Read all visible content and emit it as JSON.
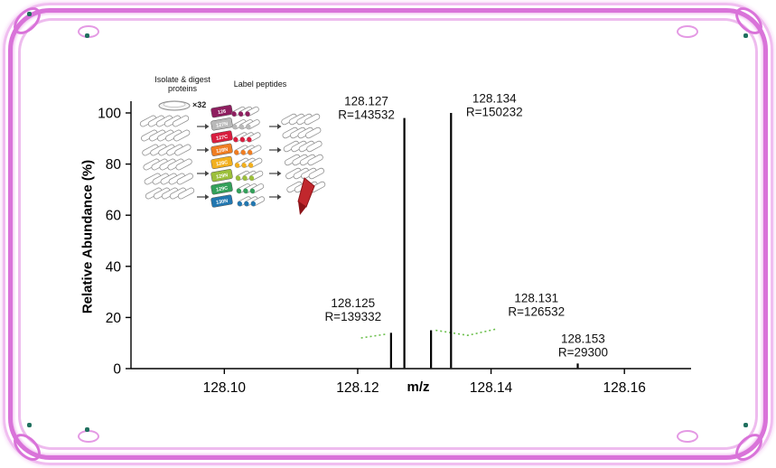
{
  "figure": {
    "background": "#ffffff"
  },
  "frame": {
    "main_color": "#d973d9",
    "light_color": "#f0bdf0",
    "speck_color": "#20705f"
  },
  "chart_data": {
    "type": "bar",
    "title": "",
    "xlabel": "m/z",
    "ylabel": "Relative Abundance (%)",
    "grid": false,
    "legend": null,
    "x_axis": {
      "min": 128.086,
      "max": 128.17,
      "ticks": [
        {
          "value": 128.1,
          "label": "128.10"
        },
        {
          "value": 128.12,
          "label": "128.12"
        },
        {
          "value": 128.14,
          "label": "128.14"
        },
        {
          "value": 128.16,
          "label": "128.16"
        }
      ]
    },
    "y_axis": {
      "min": 0,
      "max": 100,
      "ticks": [
        0,
        20,
        40,
        60,
        80,
        100
      ]
    },
    "peaks": [
      {
        "mz": 128.125,
        "abundance": 14
      },
      {
        "mz": 128.127,
        "abundance": 98
      },
      {
        "mz": 128.131,
        "abundance": 15
      },
      {
        "mz": 128.134,
        "abundance": 100
      },
      {
        "mz": 128.153,
        "abundance": 2
      }
    ],
    "annotations": [
      {
        "line1": "128.127",
        "line2": "R=143532",
        "mz": 128.1213,
        "ab": 103
      },
      {
        "line1": "128.134",
        "line2": "R=150232",
        "mz": 128.1405,
        "ab": 104
      },
      {
        "line1": "128.125",
        "line2": "R=139332",
        "mz": 128.1193,
        "ab": 24
      },
      {
        "line1": "128.131",
        "line2": "R=126532",
        "mz": 128.1468,
        "ab": 26
      },
      {
        "line1": "128.153",
        "line2": "R=29300",
        "mz": 128.1538,
        "ab": 10
      }
    ],
    "baseline_traces": [
      {
        "color": "#6abf4b",
        "points": [
          [
            128.1205,
            12
          ],
          [
            128.1243,
            13.5
          ]
        ]
      },
      {
        "color": "#6abf4b",
        "points": [
          [
            128.1317,
            15
          ],
          [
            128.1365,
            13
          ],
          [
            128.1408,
            15.5
          ]
        ]
      }
    ]
  },
  "inset": {
    "left_title_line1": "Isolate & digest",
    "left_title_line2": "proteins",
    "multiplier": "×32",
    "right_title": "Label peptides",
    "tags": [
      {
        "label": "126",
        "color": "#8e1e5f"
      },
      {
        "label": "127N",
        "color": "#b9b9b9"
      },
      {
        "label": "127C",
        "color": "#d81e3f"
      },
      {
        "label": "128N",
        "color": "#ef7d22"
      },
      {
        "label": "128C",
        "color": "#f2b01e"
      },
      {
        "label": "129N",
        "color": "#9cbf3b"
      },
      {
        "label": "129C",
        "color": "#33a05a"
      },
      {
        "label": "130N",
        "color": "#2277b0"
      }
    ]
  }
}
